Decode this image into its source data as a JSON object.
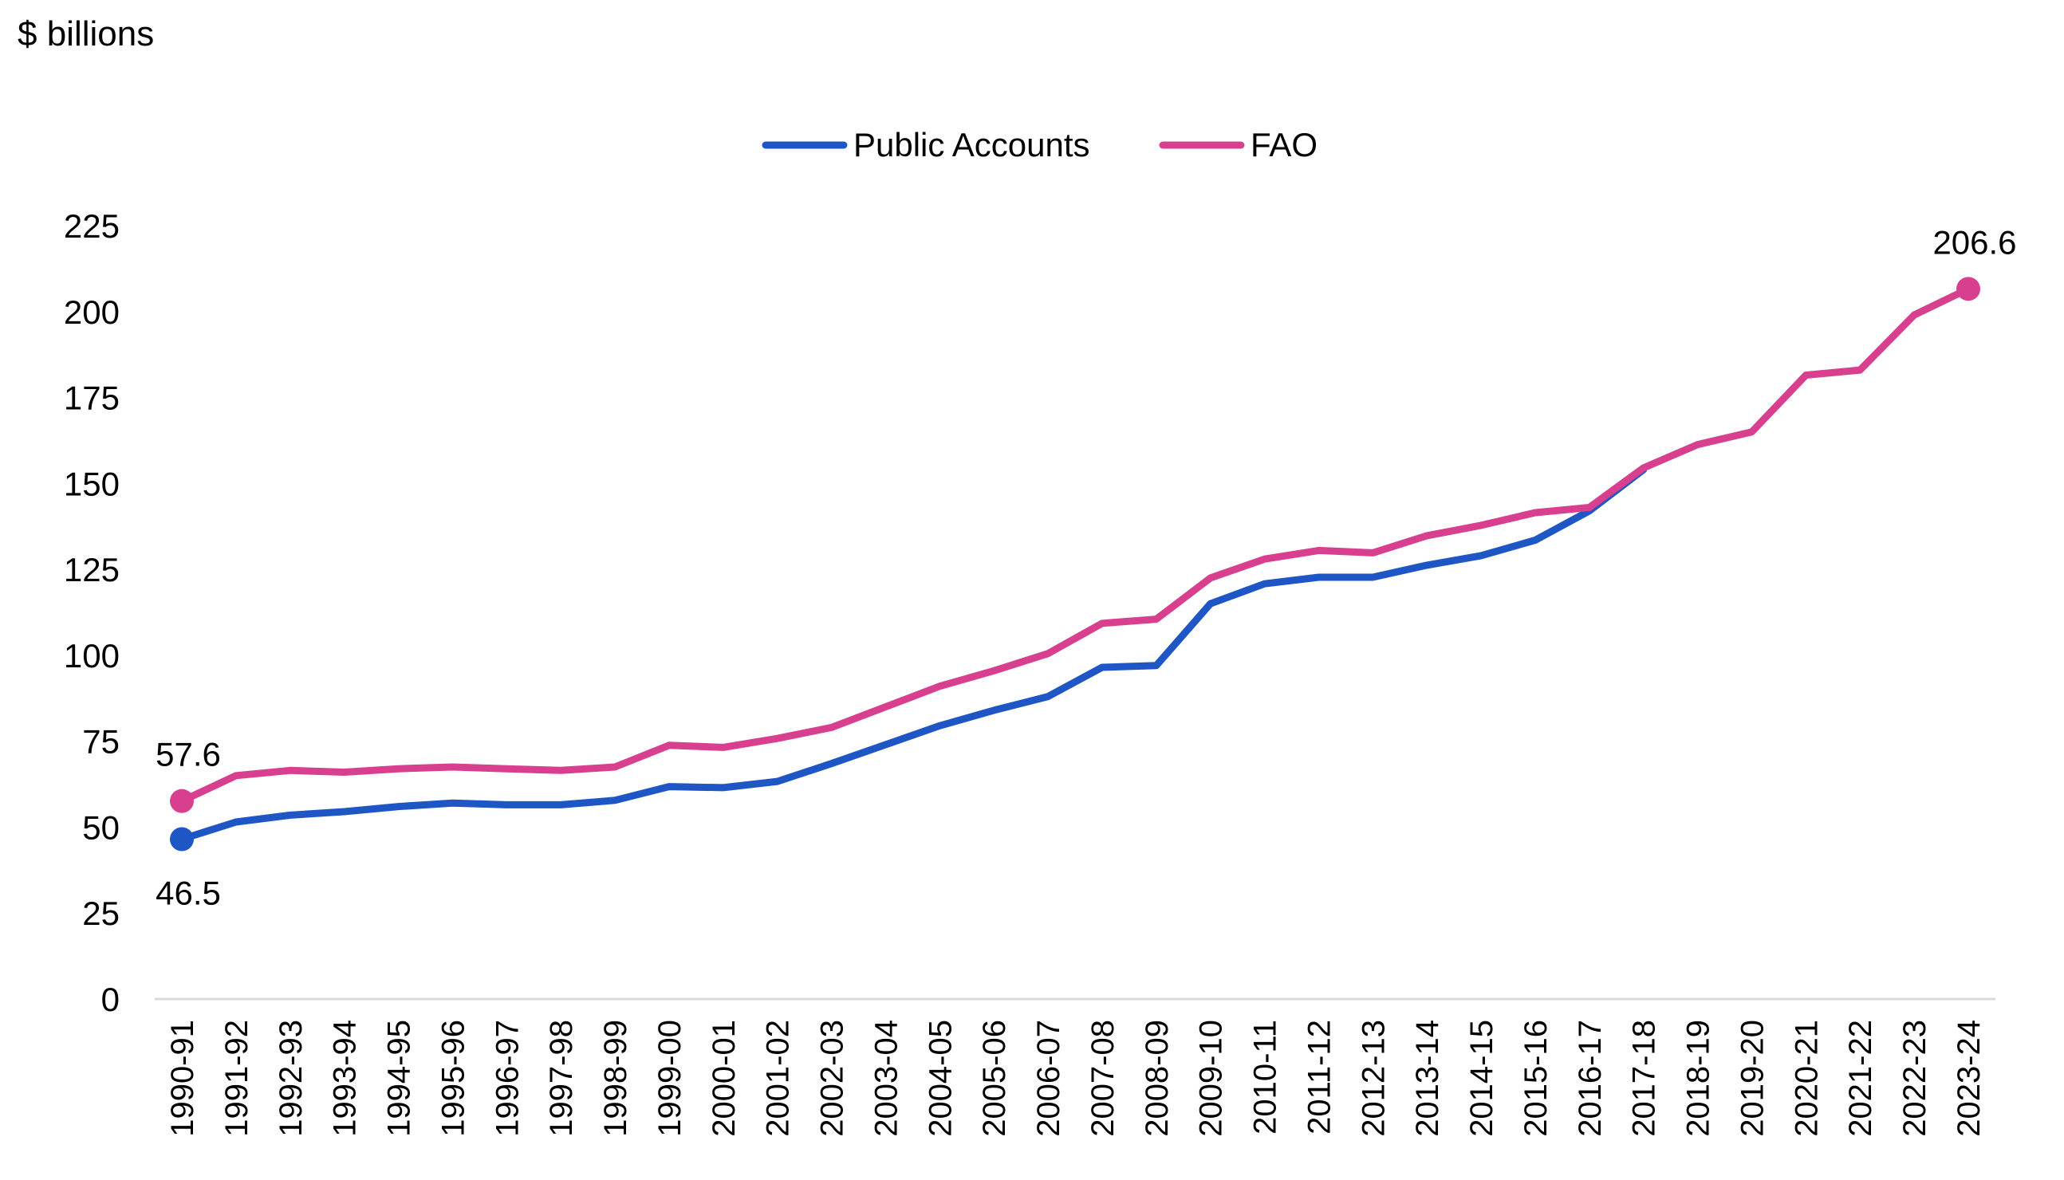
{
  "chart_data": {
    "type": "line",
    "ylabel": "$ billions",
    "ylim": [
      0,
      225
    ],
    "yticks": [
      0,
      25,
      50,
      75,
      100,
      125,
      150,
      175,
      200,
      225
    ],
    "legend_position": "top-center",
    "grid": false,
    "categories": [
      "1990-91",
      "1991-92",
      "1992-93",
      "1993-94",
      "1994-95",
      "1995-96",
      "1996-97",
      "1997-98",
      "1998-99",
      "1999-00",
      "2000-01",
      "2001-02",
      "2002-03",
      "2003-04",
      "2004-05",
      "2005-06",
      "2006-07",
      "2007-08",
      "2008-09",
      "2009-10",
      "2010-11",
      "2011-12",
      "2012-13",
      "2013-14",
      "2014-15",
      "2015-16",
      "2016-17",
      "2017-18",
      "2018-19",
      "2019-20",
      "2020-21",
      "2021-22",
      "2022-23",
      "2023-24"
    ],
    "series": [
      {
        "name": "Public Accounts",
        "color": "#1f56c6",
        "values": [
          46.5,
          51.5,
          53.5,
          54.5,
          56.0,
          57.0,
          56.5,
          56.5,
          57.8,
          61.8,
          61.5,
          63.3,
          68.5,
          74.0,
          79.5,
          84.0,
          88.0,
          96.5,
          97.0,
          115.0,
          120.8,
          122.7,
          122.7,
          126.2,
          129.0,
          133.5,
          142.0,
          154.0,
          null,
          null,
          null,
          null,
          null,
          null
        ],
        "labels": [
          {
            "index": 0,
            "text": "46.5",
            "position": "below"
          }
        ]
      },
      {
        "name": "FAO",
        "color": "#d8408f",
        "values": [
          57.6,
          65.0,
          66.5,
          66.0,
          67.0,
          67.5,
          67.0,
          66.5,
          67.5,
          73.8,
          73.2,
          75.8,
          79.0,
          85.0,
          91.0,
          95.5,
          100.5,
          109.3,
          110.5,
          122.5,
          128.0,
          130.5,
          129.8,
          134.8,
          137.8,
          141.5,
          143.0,
          154.5,
          161.3,
          165.0,
          181.5,
          183.0,
          199.0,
          206.6
        ],
        "labels": [
          {
            "index": 0,
            "text": "57.6",
            "position": "above"
          },
          {
            "index": 33,
            "text": "206.6",
            "position": "above"
          }
        ]
      }
    ]
  }
}
